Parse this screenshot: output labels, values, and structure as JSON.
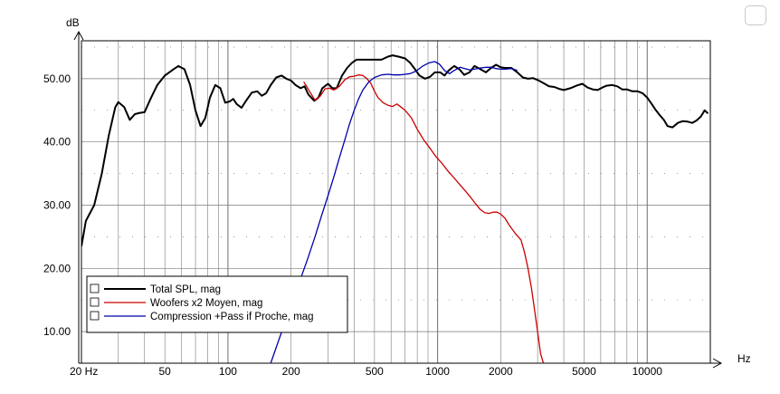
{
  "chart_data": {
    "type": "line",
    "title": "",
    "ylabel": "dB",
    "xlabel": "Hz",
    "x_scale": "log",
    "xlim": [
      20,
      20000
    ],
    "ylim": [
      5,
      56
    ],
    "grid": true,
    "legend_position": "bottom-left",
    "x_tick_labels": [
      {
        "value": 20,
        "label": "20 Hz"
      },
      {
        "value": 50,
        "label": "50"
      },
      {
        "value": 100,
        "label": "100"
      },
      {
        "value": 200,
        "label": "200"
      },
      {
        "value": 500,
        "label": "500"
      },
      {
        "value": 1000,
        "label": "1000"
      },
      {
        "value": 2000,
        "label": "2000"
      },
      {
        "value": 5000,
        "label": "5000"
      },
      {
        "value": 10000,
        "label": "10000"
      }
    ],
    "y_tick_labels": [
      {
        "value": 10,
        "label": "10.00"
      },
      {
        "value": 20,
        "label": "20.00"
      },
      {
        "value": 30,
        "label": "30.00"
      },
      {
        "value": 40,
        "label": "40.00"
      },
      {
        "value": 50,
        "label": "50.00"
      }
    ],
    "series": [
      {
        "name": "Total SPL, mag",
        "color": "#000000",
        "points": [
          [
            20,
            23.5
          ],
          [
            21,
            27.5
          ],
          [
            23,
            30
          ],
          [
            25,
            35
          ],
          [
            27,
            41
          ],
          [
            29,
            45.5
          ],
          [
            30,
            46.3
          ],
          [
            32,
            45.5
          ],
          [
            34,
            43.5
          ],
          [
            36,
            44.4
          ],
          [
            38,
            44.6
          ],
          [
            40,
            44.7
          ],
          [
            43,
            47
          ],
          [
            46,
            49
          ],
          [
            50,
            50.5
          ],
          [
            55,
            51.5
          ],
          [
            58,
            52
          ],
          [
            62,
            51.5
          ],
          [
            66,
            49
          ],
          [
            70,
            45
          ],
          [
            74,
            42.5
          ],
          [
            78,
            43.8
          ],
          [
            82,
            47
          ],
          [
            87,
            49
          ],
          [
            92,
            48.5
          ],
          [
            97,
            46.2
          ],
          [
            102,
            46.4
          ],
          [
            106,
            46.8
          ],
          [
            110,
            46
          ],
          [
            116,
            45.4
          ],
          [
            122,
            46.5
          ],
          [
            130,
            47.8
          ],
          [
            138,
            48
          ],
          [
            145,
            47.3
          ],
          [
            152,
            47.7
          ],
          [
            160,
            49
          ],
          [
            170,
            50.2
          ],
          [
            180,
            50.5
          ],
          [
            190,
            50
          ],
          [
            200,
            49.7
          ],
          [
            210,
            49
          ],
          [
            222,
            48.5
          ],
          [
            232,
            48.8
          ],
          [
            242,
            47.5
          ],
          [
            258,
            46.5
          ],
          [
            270,
            47
          ],
          [
            282,
            48.5
          ],
          [
            300,
            49.2
          ],
          [
            315,
            48.5
          ],
          [
            330,
            48.5
          ],
          [
            350,
            50.5
          ],
          [
            370,
            51.7
          ],
          [
            390,
            52.5
          ],
          [
            410,
            53
          ],
          [
            440,
            53
          ],
          [
            470,
            53
          ],
          [
            500,
            53
          ],
          [
            540,
            53
          ],
          [
            580,
            53.5
          ],
          [
            610,
            53.7
          ],
          [
            650,
            53.5
          ],
          [
            700,
            53.2
          ],
          [
            740,
            52.5
          ],
          [
            780,
            51.5
          ],
          [
            820,
            50.5
          ],
          [
            870,
            50
          ],
          [
            920,
            50.3
          ],
          [
            970,
            51
          ],
          [
            1030,
            51
          ],
          [
            1080,
            50.5
          ],
          [
            1130,
            51.3
          ],
          [
            1200,
            52
          ],
          [
            1270,
            51.5
          ],
          [
            1340,
            50.6
          ],
          [
            1420,
            51
          ],
          [
            1500,
            52
          ],
          [
            1600,
            51.5
          ],
          [
            1700,
            51
          ],
          [
            1800,
            51.7
          ],
          [
            1900,
            52.2
          ],
          [
            2000,
            51.8
          ],
          [
            2100,
            51.7
          ],
          [
            2250,
            51.7
          ],
          [
            2400,
            51
          ],
          [
            2550,
            50.2
          ],
          [
            2700,
            50
          ],
          [
            2850,
            50.1
          ],
          [
            3000,
            49.8
          ],
          [
            3200,
            49.3
          ],
          [
            3400,
            48.8
          ],
          [
            3600,
            48.7
          ],
          [
            3800,
            48.4
          ],
          [
            4000,
            48.2
          ],
          [
            4300,
            48.5
          ],
          [
            4600,
            48.9
          ],
          [
            4900,
            49.2
          ],
          [
            5200,
            48.6
          ],
          [
            5500,
            48.3
          ],
          [
            5800,
            48.2
          ],
          [
            6100,
            48.6
          ],
          [
            6400,
            48.9
          ],
          [
            6800,
            49
          ],
          [
            7200,
            48.8
          ],
          [
            7600,
            48.3
          ],
          [
            8000,
            48.3
          ],
          [
            8500,
            48
          ],
          [
            9000,
            48
          ],
          [
            9500,
            47.7
          ],
          [
            10000,
            47
          ],
          [
            10500,
            46
          ],
          [
            11000,
            45
          ],
          [
            11500,
            44.2
          ],
          [
            12000,
            43.5
          ],
          [
            12500,
            42.5
          ],
          [
            13200,
            42.3
          ],
          [
            14000,
            43
          ],
          [
            14800,
            43.3
          ],
          [
            15600,
            43.2
          ],
          [
            16400,
            43
          ],
          [
            17200,
            43.4
          ],
          [
            18000,
            44
          ],
          [
            18800,
            45
          ],
          [
            19500,
            44.5
          ]
        ]
      },
      {
        "name": "Woofers x2 Moyen, mag",
        "color": "#cc0000",
        "points": [
          [
            230,
            49.5
          ],
          [
            245,
            48
          ],
          [
            260,
            46.6
          ],
          [
            275,
            47.2
          ],
          [
            290,
            48.4
          ],
          [
            305,
            48.5
          ],
          [
            320,
            48.2
          ],
          [
            340,
            48.8
          ],
          [
            360,
            49.8
          ],
          [
            380,
            50.3
          ],
          [
            400,
            50.4
          ],
          [
            420,
            50.6
          ],
          [
            440,
            50.5
          ],
          [
            460,
            50
          ],
          [
            480,
            49.3
          ],
          [
            500,
            48
          ],
          [
            520,
            47
          ],
          [
            550,
            46.2
          ],
          [
            580,
            45.8
          ],
          [
            610,
            45.6
          ],
          [
            640,
            46
          ],
          [
            670,
            45.5
          ],
          [
            700,
            45
          ],
          [
            750,
            43.8
          ],
          [
            800,
            42
          ],
          [
            860,
            40.3
          ],
          [
            920,
            39
          ],
          [
            980,
            37.7
          ],
          [
            1050,
            36.6
          ],
          [
            1120,
            35.4
          ],
          [
            1200,
            34.3
          ],
          [
            1280,
            33.2
          ],
          [
            1360,
            32.2
          ],
          [
            1440,
            31.2
          ],
          [
            1520,
            30.2
          ],
          [
            1600,
            29.3
          ],
          [
            1680,
            28.8
          ],
          [
            1760,
            28.7
          ],
          [
            1840,
            28.9
          ],
          [
            1920,
            28.9
          ],
          [
            2000,
            28.6
          ],
          [
            2100,
            27.9
          ],
          [
            2200,
            26.8
          ],
          [
            2350,
            25.5
          ],
          [
            2500,
            24.5
          ],
          [
            2600,
            22.5
          ],
          [
            2700,
            20
          ],
          [
            2800,
            17
          ],
          [
            2900,
            13.5
          ],
          [
            3000,
            10
          ],
          [
            3100,
            6.5
          ],
          [
            3200,
            5
          ]
        ]
      },
      {
        "name": "Compression +Pass if Proche, mag",
        "color": "#0000aa",
        "points": [
          [
            160,
            5
          ],
          [
            170,
            7.5
          ],
          [
            185,
            11
          ],
          [
            200,
            14.5
          ],
          [
            220,
            18
          ],
          [
            240,
            21.5
          ],
          [
            260,
            25
          ],
          [
            280,
            28.4
          ],
          [
            300,
            31.5
          ],
          [
            320,
            34.5
          ],
          [
            340,
            37.5
          ],
          [
            360,
            40.2
          ],
          [
            380,
            42.8
          ],
          [
            400,
            45
          ],
          [
            420,
            46.8
          ],
          [
            440,
            48.2
          ],
          [
            470,
            49.5
          ],
          [
            500,
            50.2
          ],
          [
            540,
            50.6
          ],
          [
            580,
            50.7
          ],
          [
            620,
            50.6
          ],
          [
            660,
            50.6
          ],
          [
            700,
            50.7
          ],
          [
            740,
            50.8
          ],
          [
            790,
            51.2
          ],
          [
            850,
            52
          ],
          [
            910,
            52.5
          ],
          [
            970,
            52.7
          ],
          [
            1020,
            52.3
          ],
          [
            1080,
            51.3
          ],
          [
            1140,
            50.8
          ],
          [
            1200,
            51.3
          ],
          [
            1280,
            51.8
          ],
          [
            1350,
            51.6
          ],
          [
            1420,
            51.4
          ],
          [
            1500,
            51.5
          ],
          [
            1600,
            51.7
          ],
          [
            1700,
            51.8
          ],
          [
            1800,
            51.8
          ],
          [
            1900,
            51.6
          ],
          [
            2000,
            51.5
          ],
          [
            2100,
            51.5
          ],
          [
            2250,
            51.6
          ],
          [
            2400,
            51.3
          ]
        ]
      }
    ]
  }
}
